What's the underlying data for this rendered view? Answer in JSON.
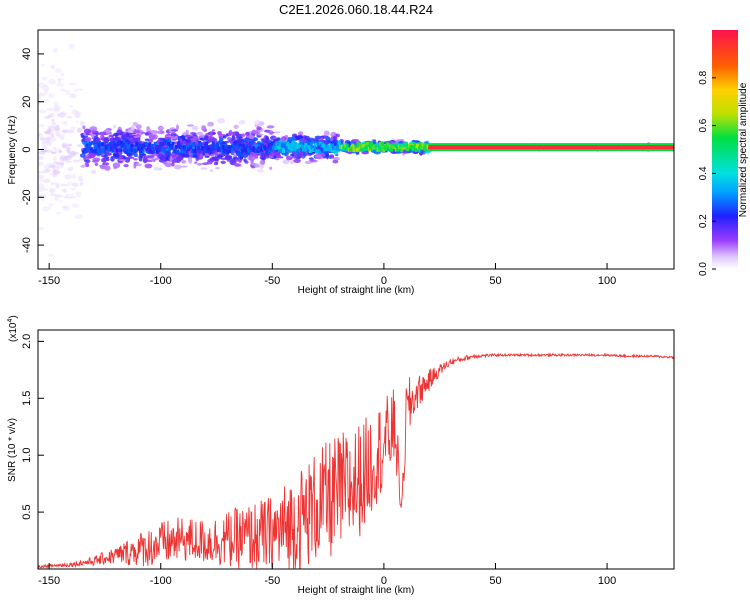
{
  "title": "C2E1.2026.060.18.44.R24",
  "chart_data": [
    {
      "type": "heatmap",
      "xlabel": "Height of straight line (km)",
      "ylabel": "Frequency (Hz)",
      "xlim": [
        -155,
        130
      ],
      "ylim": [
        -50,
        50
      ],
      "xticks": [
        -150,
        -100,
        -50,
        0,
        50,
        100
      ],
      "xtick_labels": [
        "-150",
        "-100",
        "-50",
        "0",
        "50",
        "100"
      ],
      "yticks": [
        -40,
        -20,
        0,
        20,
        40
      ],
      "ytick_labels": [
        "-40",
        "-20",
        "0",
        "20",
        "40"
      ],
      "colorbar": {
        "label": "Normalized spectral amplitude",
        "range": [
          0,
          1
        ],
        "ticks": [
          0.0,
          0.2,
          0.4,
          0.6,
          0.8
        ],
        "tick_labels": [
          "0.0",
          "0.2",
          "0.4",
          "0.6",
          "0.8"
        ]
      },
      "trace": {
        "x_start": -155,
        "x_end": 130,
        "line_frequency_hz": 1.0,
        "regions": [
          {
            "from": -155,
            "to": -135,
            "spread_hz": 50,
            "amplitude": 0.05
          },
          {
            "from": -135,
            "to": -50,
            "spread_hz": 12,
            "amplitude": 0.25
          },
          {
            "from": -50,
            "to": -20,
            "spread_hz": 8,
            "amplitude": 0.35
          },
          {
            "from": -20,
            "to": 20,
            "spread_hz": 3,
            "amplitude": 0.6
          },
          {
            "from": 20,
            "to": 130,
            "spread_hz": 1,
            "amplitude": 0.95
          }
        ]
      }
    },
    {
      "type": "line",
      "xlabel": "Height of straight line (km)",
      "ylabel": "SNR (10 * v/v)",
      "y_multiplier_label": "(x10",
      "y_multiplier_exp": "4",
      "y_multiplier_close": ")",
      "xlim": [
        -155,
        130
      ],
      "ylim": [
        0,
        2.1
      ],
      "xticks": [
        -150,
        -100,
        -50,
        0,
        50,
        100
      ],
      "xtick_labels": [
        "-150",
        "-100",
        "-50",
        "0",
        "50",
        "100"
      ],
      "yticks": [
        0.5,
        1.0,
        1.5,
        2.0
      ],
      "ytick_labels": [
        "0.5",
        "1.0",
        "1.5",
        "2.0"
      ],
      "series": [
        {
          "color": "#ee3333",
          "x": [
            -155,
            -140,
            -130,
            -120,
            -110,
            -100,
            -90,
            -80,
            -70,
            -60,
            -50,
            -40,
            -30,
            -20,
            -10,
            -5,
            0,
            5,
            8,
            10,
            12,
            15,
            20,
            25,
            30,
            40,
            50,
            60,
            70,
            80,
            90,
            100,
            110,
            120,
            130
          ],
          "y": [
            0.02,
            0.04,
            0.07,
            0.12,
            0.17,
            0.22,
            0.26,
            0.24,
            0.26,
            0.28,
            0.3,
            0.4,
            0.55,
            0.65,
            0.8,
            0.95,
            1.1,
            1.25,
            0.5,
            1.35,
            1.45,
            1.55,
            1.65,
            1.75,
            1.82,
            1.87,
            1.88,
            1.88,
            1.88,
            1.88,
            1.88,
            1.88,
            1.87,
            1.87,
            1.86
          ],
          "noise": [
            0.01,
            0.02,
            0.04,
            0.08,
            0.15,
            0.2,
            0.2,
            0.2,
            0.25,
            0.3,
            0.35,
            0.45,
            0.5,
            0.55,
            0.5,
            0.45,
            0.4,
            0.35,
            0.1,
            0.3,
            0.25,
            0.15,
            0.1,
            0.05,
            0.03,
            0.02,
            0.01,
            0.01,
            0.01,
            0.01,
            0.01,
            0.01,
            0.01,
            0.01,
            0.01
          ]
        }
      ]
    }
  ]
}
